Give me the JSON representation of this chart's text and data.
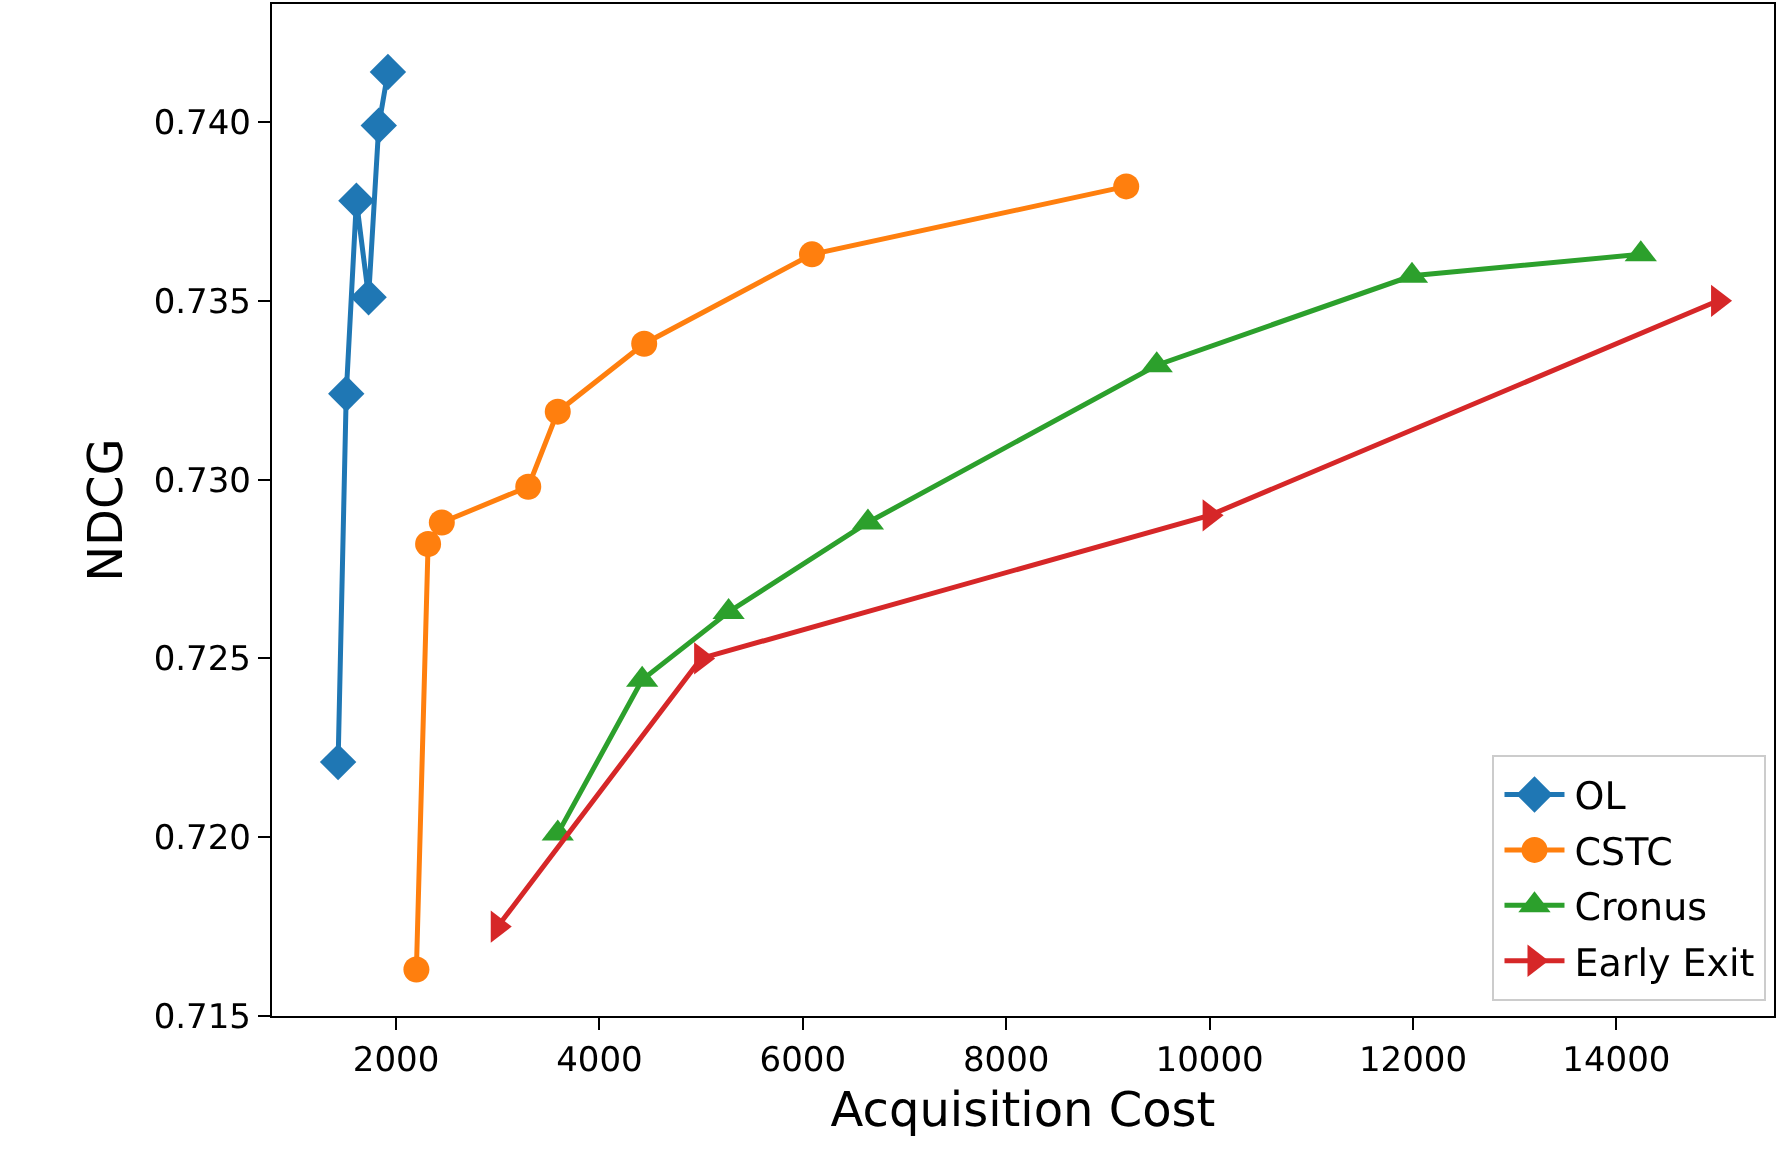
{
  "chart_data": {
    "type": "line",
    "xlabel": "Acquisition Cost",
    "ylabel": "NDCG",
    "xlim": [
      780,
      15550
    ],
    "xticks": [
      2000,
      4000,
      6000,
      8000,
      10000,
      12000,
      14000
    ],
    "ylim": [
      0.715,
      0.7433
    ],
    "yticks": [
      0.715,
      {
        "value": 0.72,
        "label": "0.720"
      },
      0.725,
      {
        "value": 0.73,
        "label": "0.730"
      },
      0.735,
      {
        "value": 0.74,
        "label": "0.740"
      }
    ],
    "legend": "bottom right",
    "line_style": "solid",
    "series": [
      {
        "name": "OL",
        "color": "#1f77b4",
        "marker": "diamond",
        "x": [
          1430,
          1510,
          1610,
          1730,
          1830,
          1920
        ],
        "values": [
          0.7221,
          0.7324,
          0.7378,
          0.7351,
          0.7399,
          0.7414
        ]
      },
      {
        "name": "CSTC",
        "color": "#ff7f0e",
        "marker": "circle",
        "x": [
          2200,
          2315,
          2450,
          3300,
          3590,
          4440,
          6090,
          9180
        ],
        "values": [
          0.7163,
          0.7282,
          0.7288,
          0.7298,
          0.7319,
          0.7338,
          0.7363,
          0.7382
        ]
      },
      {
        "name": "Cronus",
        "color": "#2ca02c",
        "marker": "triangle",
        "x": [
          3590,
          4420,
          5270,
          6640,
          9480,
          11990,
          14240
        ],
        "values": [
          0.7201,
          0.7244,
          0.7263,
          0.7288,
          0.7332,
          0.7357,
          0.7363
        ]
      },
      {
        "name": "Early Exit",
        "color": "#d62728",
        "marker": "triangle-right",
        "x": [
          3000,
          5000,
          10000,
          15000
        ],
        "values": [
          0.7175,
          0.725,
          0.729,
          0.735
        ]
      }
    ]
  }
}
